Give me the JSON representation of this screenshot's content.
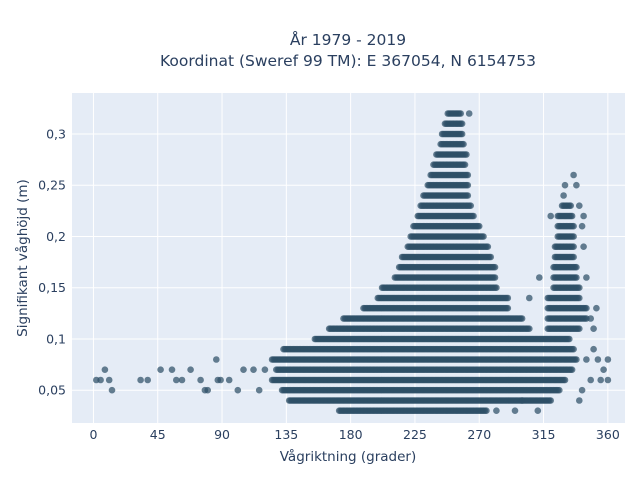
{
  "chart_data": {
    "type": "scatter",
    "title_lines": [
      "År 1979 - 2019",
      "Koordinat (Sweref 99 TM): E 367054, N 6154753"
    ],
    "xlabel": "Vågriktning (grader)",
    "ylabel": "Signifikant våghöjd (m)",
    "xlim": [
      -15,
      372
    ],
    "ylim": [
      0.018,
      0.34
    ],
    "xticks": [
      0,
      45,
      90,
      135,
      180,
      225,
      270,
      315,
      360
    ],
    "xtick_labels": [
      "0",
      "45",
      "90",
      "135",
      "180",
      "225",
      "270",
      "315",
      "360"
    ],
    "yticks": [
      0.05,
      0.1,
      0.15,
      0.2,
      0.25,
      0.3
    ],
    "ytick_labels": [
      "0,05",
      "0,1",
      "0,15",
      "0,2",
      "0,25",
      "0,3"
    ],
    "grid": true,
    "marker_color": "#2e4f66",
    "plot_background": "#e5ecf6",
    "band_ranges_description_levels": [
      0.03,
      0.04,
      0.05,
      0.06,
      0.07,
      0.08,
      0.09,
      0.1,
      0.11,
      0.12,
      0.13,
      0.14,
      0.15,
      0.16,
      0.17,
      0.18,
      0.19,
      0.2,
      0.21,
      0.22,
      0.23,
      0.24,
      0.25,
      0.26,
      0.27,
      0.28,
      0.29,
      0.3,
      0.31,
      0.32
    ],
    "bands": [
      {
        "y": 0.03,
        "ranges": [
          [
            172,
            275
          ]
        ]
      },
      {
        "y": 0.04,
        "ranges": [
          [
            137,
            320
          ]
        ]
      },
      {
        "y": 0.05,
        "ranges": [
          [
            132,
            326
          ]
        ]
      },
      {
        "y": 0.06,
        "ranges": [
          [
            125,
            330
          ]
        ]
      },
      {
        "y": 0.07,
        "ranges": [
          [
            128,
            335
          ]
        ]
      },
      {
        "y": 0.08,
        "ranges": [
          [
            125,
            338
          ]
        ]
      },
      {
        "y": 0.09,
        "ranges": [
          [
            133,
            336
          ]
        ]
      },
      {
        "y": 0.1,
        "ranges": [
          [
            155,
            333
          ]
        ]
      },
      {
        "y": 0.11,
        "ranges": [
          [
            165,
            305
          ],
          [
            318,
            340
          ]
        ]
      },
      {
        "y": 0.12,
        "ranges": [
          [
            175,
            300
          ],
          [
            318,
            345
          ]
        ]
      },
      {
        "y": 0.13,
        "ranges": [
          [
            189,
            290
          ],
          [
            318,
            345
          ]
        ]
      },
      {
        "y": 0.14,
        "ranges": [
          [
            199,
            290
          ],
          [
            318,
            340
          ]
        ]
      },
      {
        "y": 0.15,
        "ranges": [
          [
            202,
            282
          ],
          [
            322,
            340
          ]
        ]
      },
      {
        "y": 0.16,
        "ranges": [
          [
            211,
            281
          ],
          [
            322,
            338
          ]
        ]
      },
      {
        "y": 0.17,
        "ranges": [
          [
            214,
            281
          ],
          [
            322,
            338
          ]
        ]
      },
      {
        "y": 0.18,
        "ranges": [
          [
            216,
            278
          ],
          [
            323,
            336
          ]
        ]
      },
      {
        "y": 0.19,
        "ranges": [
          [
            220,
            276
          ],
          [
            323,
            336
          ]
        ]
      },
      {
        "y": 0.2,
        "ranges": [
          [
            222,
            273
          ],
          [
            325,
            336
          ]
        ]
      },
      {
        "y": 0.21,
        "ranges": [
          [
            224,
            270
          ],
          [
            325,
            336
          ]
        ]
      },
      {
        "y": 0.22,
        "ranges": [
          [
            227,
            266
          ],
          [
            325,
            335
          ]
        ]
      },
      {
        "y": 0.23,
        "ranges": [
          [
            229,
            264
          ],
          [
            328,
            333
          ]
        ]
      },
      {
        "y": 0.24,
        "ranges": [
          [
            231,
            262
          ]
        ]
      },
      {
        "y": 0.25,
        "ranges": [
          [
            234,
            262
          ]
        ]
      },
      {
        "y": 0.26,
        "ranges": [
          [
            236,
            262
          ]
        ]
      },
      {
        "y": 0.27,
        "ranges": [
          [
            238,
            260
          ]
        ]
      },
      {
        "y": 0.28,
        "ranges": [
          [
            240,
            261
          ]
        ]
      },
      {
        "y": 0.29,
        "ranges": [
          [
            243,
            259
          ]
        ]
      },
      {
        "y": 0.3,
        "ranges": [
          [
            244,
            258
          ]
        ]
      },
      {
        "y": 0.31,
        "ranges": [
          [
            246,
            258
          ]
        ]
      },
      {
        "y": 0.32,
        "ranges": [
          [
            248,
            256
          ]
        ]
      }
    ],
    "points": [
      {
        "x": 2,
        "y": 0.06
      },
      {
        "x": 5,
        "y": 0.06
      },
      {
        "x": 8,
        "y": 0.07
      },
      {
        "x": 11,
        "y": 0.06
      },
      {
        "x": 13,
        "y": 0.05
      },
      {
        "x": 33,
        "y": 0.06
      },
      {
        "x": 38,
        "y": 0.06
      },
      {
        "x": 47,
        "y": 0.07
      },
      {
        "x": 55,
        "y": 0.07
      },
      {
        "x": 58,
        "y": 0.06
      },
      {
        "x": 62,
        "y": 0.06
      },
      {
        "x": 68,
        "y": 0.07
      },
      {
        "x": 75,
        "y": 0.06
      },
      {
        "x": 78,
        "y": 0.05
      },
      {
        "x": 80,
        "y": 0.05
      },
      {
        "x": 86,
        "y": 0.08
      },
      {
        "x": 87,
        "y": 0.06
      },
      {
        "x": 89,
        "y": 0.06
      },
      {
        "x": 95,
        "y": 0.06
      },
      {
        "x": 101,
        "y": 0.05
      },
      {
        "x": 105,
        "y": 0.07
      },
      {
        "x": 112,
        "y": 0.07
      },
      {
        "x": 116,
        "y": 0.05
      },
      {
        "x": 120,
        "y": 0.07
      },
      {
        "x": 263,
        "y": 0.32
      },
      {
        "x": 257,
        "y": 0.32
      },
      {
        "x": 282,
        "y": 0.03
      },
      {
        "x": 295,
        "y": 0.03
      },
      {
        "x": 311,
        "y": 0.03
      },
      {
        "x": 300,
        "y": 0.04
      },
      {
        "x": 312,
        "y": 0.16
      },
      {
        "x": 305,
        "y": 0.14
      },
      {
        "x": 320,
        "y": 0.22
      },
      {
        "x": 329,
        "y": 0.24
      },
      {
        "x": 330,
        "y": 0.25
      },
      {
        "x": 338,
        "y": 0.25
      },
      {
        "x": 336,
        "y": 0.26
      },
      {
        "x": 334,
        "y": 0.23
      },
      {
        "x": 340,
        "y": 0.23
      },
      {
        "x": 343,
        "y": 0.22
      },
      {
        "x": 342,
        "y": 0.21
      },
      {
        "x": 343,
        "y": 0.19
      },
      {
        "x": 345,
        "y": 0.16
      },
      {
        "x": 348,
        "y": 0.12
      },
      {
        "x": 350,
        "y": 0.11
      },
      {
        "x": 352,
        "y": 0.13
      },
      {
        "x": 350,
        "y": 0.09
      },
      {
        "x": 353,
        "y": 0.08
      },
      {
        "x": 357,
        "y": 0.07
      },
      {
        "x": 355,
        "y": 0.06
      },
      {
        "x": 360,
        "y": 0.08
      },
      {
        "x": 360,
        "y": 0.06
      },
      {
        "x": 345,
        "y": 0.08
      },
      {
        "x": 348,
        "y": 0.06
      },
      {
        "x": 342,
        "y": 0.05
      },
      {
        "x": 340,
        "y": 0.04
      }
    ]
  }
}
